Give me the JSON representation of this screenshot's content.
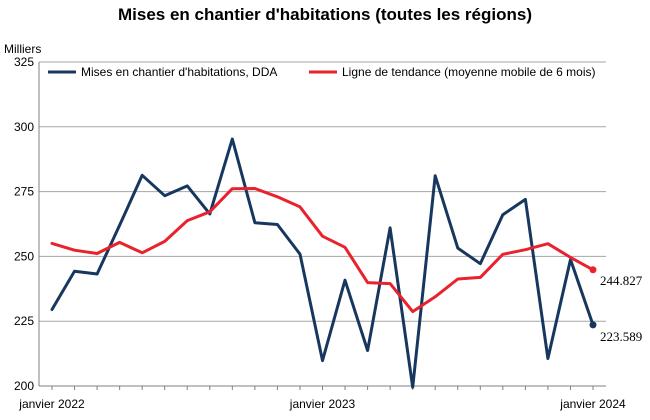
{
  "chart_data": {
    "type": "line",
    "title": "Mises en chantier d'habitations (toutes les régions)",
    "ylabel": "Milliers",
    "ylim": [
      200,
      325
    ],
    "yticks": [
      200,
      225,
      250,
      275,
      300,
      325
    ],
    "xtick_labels": [
      {
        "label": "janvier 2022",
        "index": 0
      },
      {
        "label": "janvier 2023",
        "index": 12
      },
      {
        "label": "janvier 2024",
        "index": 24
      }
    ],
    "grid": true,
    "legend_position": "top",
    "x": [
      "2022-01",
      "2022-02",
      "2022-03",
      "2022-04",
      "2022-05",
      "2022-06",
      "2022-07",
      "2022-08",
      "2022-09",
      "2022-10",
      "2022-11",
      "2022-12",
      "2023-01",
      "2023-02",
      "2023-03",
      "2023-04",
      "2023-05",
      "2023-06",
      "2023-07",
      "2023-08",
      "2023-09",
      "2023-10",
      "2023-11",
      "2023-12",
      "2024-01"
    ],
    "series": [
      {
        "name": "Mises en chantier d'habitations, DDA",
        "color": "#17375e",
        "values": [
          229.5,
          244.3,
          243.2,
          262.0,
          281.3,
          273.4,
          277.2,
          266.4,
          295.3,
          263.0,
          262.3,
          250.9,
          209.8,
          240.8,
          213.7,
          261.0,
          199.5,
          281.1,
          253.2,
          247.2,
          266.1,
          272.0,
          210.6,
          248.8,
          223.589
        ],
        "end_label": "223.589"
      },
      {
        "name": "Ligne de tendance (moyenne mobile de 6 mois)",
        "color": "#e8232d",
        "values": [
          255.0,
          252.4,
          251.1,
          255.4,
          251.4,
          255.8,
          263.8,
          267.2,
          276.1,
          276.2,
          273.0,
          269.1,
          257.8,
          253.5,
          239.9,
          239.5,
          228.7,
          234.4,
          241.3,
          241.9,
          250.8,
          252.6,
          254.9,
          249.6,
          244.827
        ],
        "end_label": "244.827"
      }
    ]
  }
}
